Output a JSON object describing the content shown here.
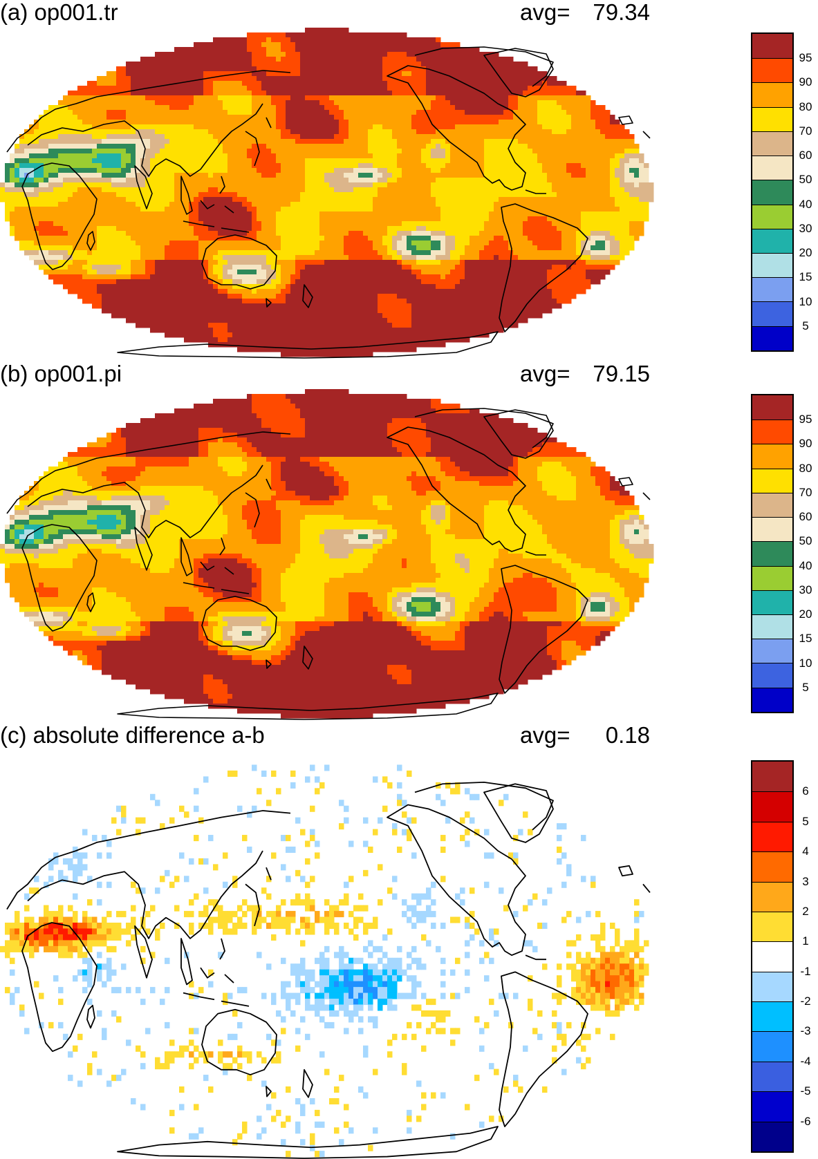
{
  "panels": [
    {
      "id": "a",
      "title": "(a) op001.tr",
      "avg_label": "avg=",
      "avg_value": "79.34",
      "colorbar": {
        "colors": [
          "#a52525",
          "#ff4a00",
          "#ffa200",
          "#ffe000",
          "#dcb58a",
          "#f5e6c4",
          "#2e8a5a",
          "#9acd32",
          "#20b2aa",
          "#b0e0e6",
          "#7b9ff0",
          "#3d63e0",
          "#0000c8"
        ],
        "ticks": [
          "95",
          "90",
          "80",
          "70",
          "60",
          "50",
          "40",
          "30",
          "20",
          "15",
          "10",
          "5"
        ]
      }
    },
    {
      "id": "b",
      "title": "(b) op001.pi",
      "avg_label": "avg=",
      "avg_value": "79.15",
      "colorbar": {
        "colors": [
          "#a52525",
          "#ff4a00",
          "#ffa200",
          "#ffe000",
          "#dcb58a",
          "#f5e6c4",
          "#2e8a5a",
          "#9acd32",
          "#20b2aa",
          "#b0e0e6",
          "#7b9ff0",
          "#3d63e0",
          "#0000c8"
        ],
        "ticks": [
          "95",
          "90",
          "80",
          "70",
          "60",
          "50",
          "40",
          "30",
          "20",
          "15",
          "10",
          "5"
        ]
      }
    },
    {
      "id": "c",
      "title": "(c) absolute difference a-b",
      "avg_label": "avg=",
      "avg_value": "0.18",
      "colorbar": {
        "colors": [
          "#a52525",
          "#d40000",
          "#ff1a00",
          "#ff6a00",
          "#ffa81a",
          "#ffdd33",
          "#ffffff",
          "#a6d8ff",
          "#00bfff",
          "#1e90ff",
          "#3a5fe0",
          "#0000cd",
          "#00008b"
        ],
        "ticks": [
          "6",
          "5",
          "4",
          "3",
          "2",
          "1",
          "-1",
          "-2",
          "-3",
          "-4",
          "-5",
          "-6"
        ]
      }
    }
  ]
}
